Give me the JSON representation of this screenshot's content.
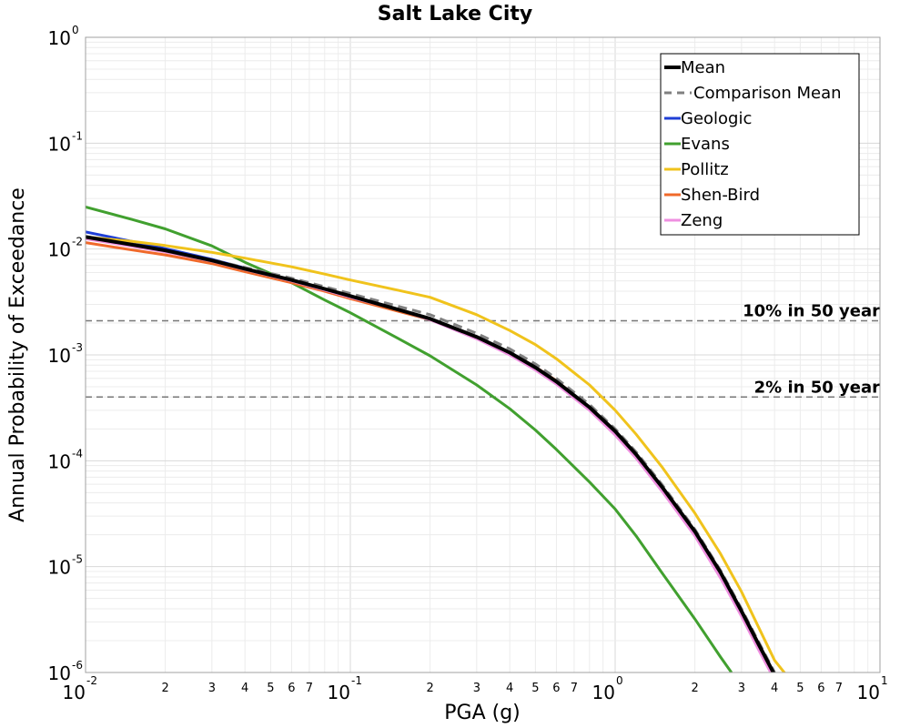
{
  "chart_data": {
    "type": "line",
    "title": "Salt Lake City",
    "xlabel": "PGA (g)",
    "ylabel": "Annual Probability of Exceedance",
    "xscale": "log",
    "yscale": "log",
    "xlim": [
      0.01,
      10
    ],
    "ylim": [
      1e-06,
      1
    ],
    "grid": true,
    "legend_position": "top-right",
    "x_major_ticks": [
      {
        "value": 0.01,
        "base": "10",
        "exp": "-2"
      },
      {
        "value": 0.1,
        "base": "10",
        "exp": "-1"
      },
      {
        "value": 1,
        "base": "10",
        "exp": "0"
      },
      {
        "value": 10,
        "base": "10",
        "exp": "1"
      }
    ],
    "y_major_ticks": [
      {
        "value": 1,
        "base": "10",
        "exp": "0"
      },
      {
        "value": 0.1,
        "base": "10",
        "exp": "-1"
      },
      {
        "value": 0.01,
        "base": "10",
        "exp": "-2"
      },
      {
        "value": 0.001,
        "base": "10",
        "exp": "-3"
      },
      {
        "value": 0.0001,
        "base": "10",
        "exp": "-4"
      },
      {
        "value": 1e-05,
        "base": "10",
        "exp": "-5"
      },
      {
        "value": 1e-06,
        "base": "10",
        "exp": "-6"
      }
    ],
    "x_minor_tick_labels": [
      "2",
      "3",
      "4",
      "5",
      "6",
      "7"
    ],
    "reference_lines": [
      {
        "label": "10% in 50 year",
        "y": 0.0021
      },
      {
        "label": "2% in 50 year",
        "y": 0.0004
      }
    ],
    "series": [
      {
        "name": "Geologic",
        "color": "#1f3fd6",
        "style": "solid",
        "x": [
          0.01,
          0.015,
          0.02,
          0.03,
          0.04
        ],
        "y": [
          0.0145,
          0.0118,
          0.0101,
          0.008,
          0.0066
        ]
      },
      {
        "name": "Evans",
        "color": "#41a02f",
        "style": "solid",
        "x": [
          0.01,
          0.015,
          0.02,
          0.03,
          0.04,
          0.06,
          0.08,
          0.1,
          0.15,
          0.2,
          0.3,
          0.4,
          0.5,
          0.6,
          0.8,
          1.0,
          1.2,
          1.5,
          2.0,
          2.5,
          2.75
        ],
        "y": [
          0.025,
          0.019,
          0.0155,
          0.0107,
          0.0075,
          0.0048,
          0.0033,
          0.0025,
          0.00145,
          0.00098,
          0.00052,
          0.00031,
          0.000195,
          0.000128,
          6.3e-05,
          3.5e-05,
          1.95e-05,
          8.8e-06,
          3.2e-06,
          1.4e-06,
          1e-06
        ]
      },
      {
        "name": "Pollitz",
        "color": "#f0c31c",
        "style": "solid",
        "x": [
          0.01,
          0.015,
          0.02,
          0.03,
          0.04,
          0.06,
          0.08,
          0.1,
          0.15,
          0.2,
          0.3,
          0.4,
          0.5,
          0.6,
          0.8,
          1.0,
          1.2,
          1.5,
          2.0,
          2.5,
          3.0,
          3.5,
          4.0,
          4.5
        ],
        "y": [
          0.013,
          0.0118,
          0.0108,
          0.0093,
          0.0082,
          0.0068,
          0.0058,
          0.0051,
          0.0041,
          0.0035,
          0.0024,
          0.0017,
          0.00125,
          0.00092,
          0.00052,
          0.0003,
          0.000178,
          8.8e-05,
          3.2e-05,
          1.32e-05,
          5.8e-06,
          2.6e-06,
          1.3e-06,
          9e-07
        ]
      },
      {
        "name": "Shen-Bird",
        "color": "#f0692a",
        "style": "solid",
        "x": [
          0.01,
          0.015,
          0.02,
          0.03,
          0.04,
          0.06,
          0.08,
          0.1,
          0.15,
          0.2,
          0.3,
          0.4,
          0.5,
          0.6,
          0.8,
          1.0,
          1.2,
          1.5,
          2.0,
          2.5,
          3.0,
          3.5,
          4.0,
          4.3
        ],
        "y": [
          0.0115,
          0.0098,
          0.0088,
          0.0073,
          0.0061,
          0.0048,
          0.004,
          0.0034,
          0.0026,
          0.00215,
          0.00148,
          0.00105,
          0.00077,
          0.00057,
          0.00032,
          0.00019,
          0.000115,
          5.7e-05,
          2.15e-05,
          8.8e-06,
          3.8e-06,
          1.8e-06,
          9.5e-07,
          7.5e-07
        ]
      },
      {
        "name": "Zeng",
        "color": "#ef8fe0",
        "style": "solid",
        "x": [
          0.01,
          0.015,
          0.02,
          0.03,
          0.04,
          0.06,
          0.08,
          0.1,
          0.15,
          0.2,
          0.3,
          0.4,
          0.5,
          0.6,
          0.8,
          1.0,
          1.2,
          1.5,
          2.0,
          2.5,
          3.0,
          3.5,
          4.0,
          4.2
        ],
        "y": [
          0.0125,
          0.0106,
          0.0094,
          0.0077,
          0.0064,
          0.005,
          0.0041,
          0.0035,
          0.0027,
          0.00215,
          0.00142,
          0.001,
          0.00072,
          0.00053,
          0.0003,
          0.000175,
          0.000106,
          5.2e-05,
          1.95e-05,
          7.8e-06,
          3.4e-06,
          1.6e-06,
          8.5e-07,
          7e-07
        ]
      },
      {
        "name": "Comparison Mean",
        "color": "#808080",
        "style": "dashed",
        "x": [
          0.01,
          0.015,
          0.02,
          0.03,
          0.04,
          0.06,
          0.08,
          0.1,
          0.15,
          0.2,
          0.3,
          0.4,
          0.5,
          0.6,
          0.8,
          1.0,
          1.2,
          1.5,
          2.0,
          2.5,
          3.0,
          3.5,
          4.0
        ],
        "y": [
          0.013,
          0.011,
          0.0097,
          0.0079,
          0.0067,
          0.0053,
          0.0044,
          0.0038,
          0.0029,
          0.0024,
          0.0016,
          0.00114,
          0.00082,
          0.0006,
          0.00034,
          0.0002,
          0.000121,
          6e-05,
          2.25e-05,
          9.2e-06,
          4e-06,
          1.9e-06,
          1e-06
        ]
      },
      {
        "name": "Mean",
        "color": "#000000",
        "style": "solid",
        "x": [
          0.01,
          0.015,
          0.02,
          0.03,
          0.04,
          0.06,
          0.08,
          0.1,
          0.15,
          0.2,
          0.3,
          0.4,
          0.5,
          0.6,
          0.8,
          1.0,
          1.2,
          1.5,
          2.0,
          2.5,
          3.0,
          3.5,
          4.0,
          4.25
        ],
        "y": [
          0.013,
          0.011,
          0.0097,
          0.0078,
          0.0065,
          0.0051,
          0.0042,
          0.0036,
          0.0027,
          0.0022,
          0.00148,
          0.00105,
          0.00076,
          0.00056,
          0.00032,
          0.00019,
          0.000115,
          5.7e-05,
          2.15e-05,
          8.8e-06,
          3.8e-06,
          1.8e-06,
          9.5e-07,
          7e-07
        ]
      }
    ],
    "legend": [
      {
        "label": "Mean",
        "color": "#000000",
        "style": "solid",
        "width": 4
      },
      {
        "label": "Comparison Mean",
        "color": "#808080",
        "style": "dashed",
        "width": 3
      },
      {
        "label": "Geologic",
        "color": "#1f3fd6",
        "style": "solid",
        "width": 3
      },
      {
        "label": "Evans",
        "color": "#41a02f",
        "style": "solid",
        "width": 3
      },
      {
        "label": "Pollitz",
        "color": "#f0c31c",
        "style": "solid",
        "width": 3
      },
      {
        "label": "Shen-Bird",
        "color": "#f0692a",
        "style": "solid",
        "width": 3
      },
      {
        "label": "Zeng",
        "color": "#ef8fe0",
        "style": "solid",
        "width": 3
      }
    ]
  }
}
